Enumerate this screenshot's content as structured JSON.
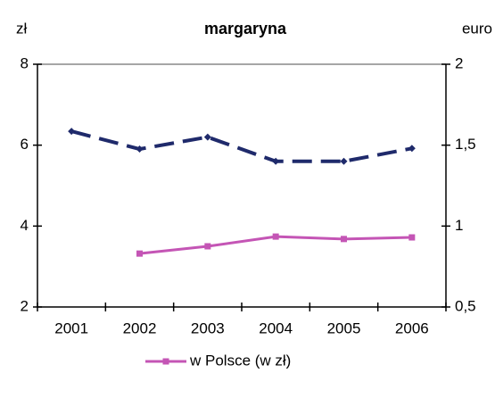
{
  "chart_data": {
    "type": "line",
    "title": "margaryna",
    "y_label": "zł",
    "y2_label": "euro",
    "categories": [
      "2001",
      "2002",
      "2003",
      "2004",
      "2005",
      "2006"
    ],
    "series": [
      {
        "name": "w Polsce (w zł)",
        "color": "#c455b5",
        "values": [
          null,
          3.32,
          3.5,
          3.74,
          3.68,
          3.72
        ]
      },
      {
        "color": "#1f2a6b",
        "axis": "y2",
        "dashed": true,
        "values": [
          1.586,
          1.476,
          1.55,
          1.4,
          1.4,
          1.48
        ]
      }
    ],
    "ylim": [
      2,
      8
    ],
    "yticks": [
      2,
      4,
      6,
      8
    ],
    "y2lim": [
      0.5,
      2
    ],
    "y2ticks": [
      {
        "value": 0.5,
        "label": "0,5"
      },
      1,
      {
        "value": 1.5,
        "label": "1,5"
      },
      2
    ],
    "legend": "bottom"
  }
}
